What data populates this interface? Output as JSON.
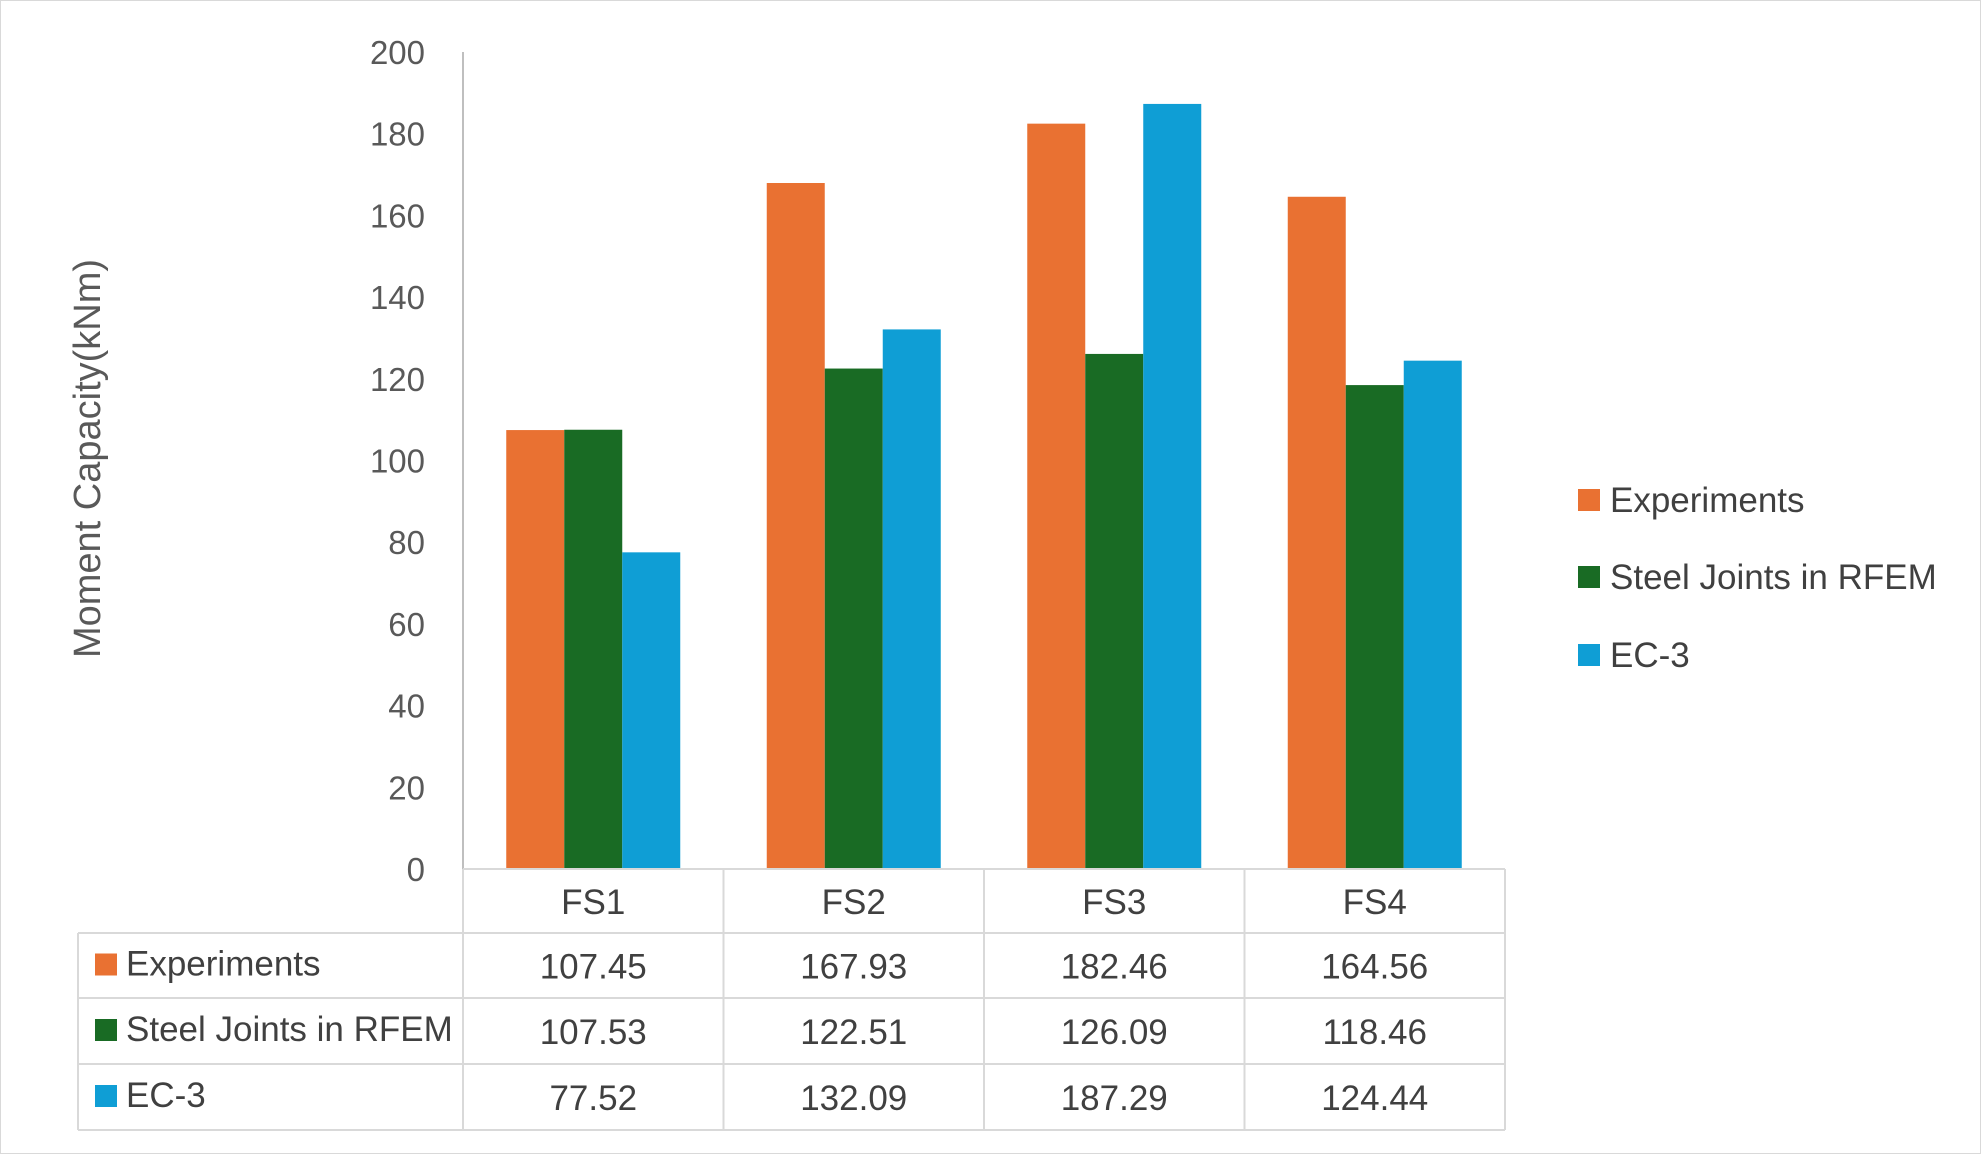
{
  "chart_data": {
    "type": "bar",
    "title": "",
    "xlabel": "",
    "ylabel": "Moment Capacity(kNm)",
    "ylim": [
      0,
      200
    ],
    "yticks": [
      0,
      20,
      40,
      60,
      80,
      100,
      120,
      140,
      160,
      180,
      200
    ],
    "grid": false,
    "legend_position": "right",
    "categories": [
      "FS1",
      "FS2",
      "FS3",
      "FS4"
    ],
    "series": [
      {
        "name": "Experiments",
        "color": "#E97132",
        "values": [
          107.45,
          167.93,
          182.46,
          164.56
        ],
        "table_values": [
          "107.45",
          "167.93",
          "182.46",
          "164.56"
        ]
      },
      {
        "name": "Steel Joints in RFEM",
        "color": "#196B24",
        "values": [
          107.53,
          122.51,
          126.09,
          118.46
        ],
        "table_values": [
          "107.53",
          "122.51",
          "126.09",
          "118.46"
        ]
      },
      {
        "name": "EC-3",
        "color": "#0F9ED5",
        "values": [
          77.52,
          132.09,
          187.29,
          124.44
        ],
        "table_values": [
          "77.52",
          "132.09",
          "187.29",
          "124.44"
        ]
      }
    ],
    "data_table": true
  }
}
